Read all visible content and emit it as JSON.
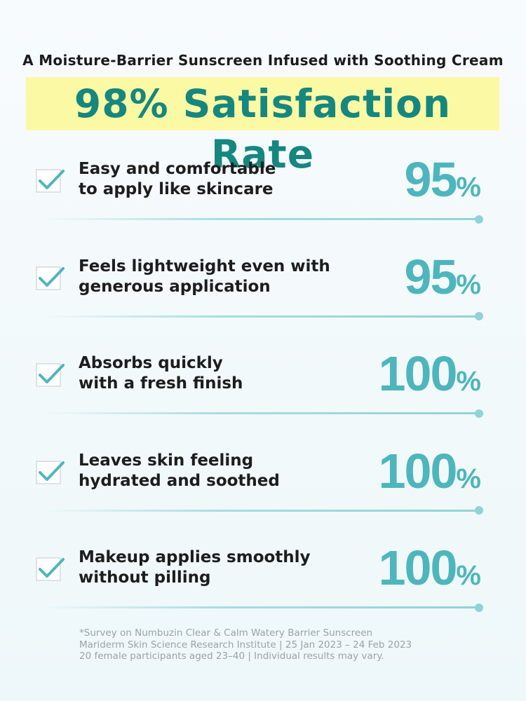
{
  "header": {
    "subtitle": "A Moisture-Barrier Sunscreen Infused with Soothing Cream",
    "title": "98% Satisfaction Rate"
  },
  "items": [
    {
      "lines": [
        "Easy and comfortable",
        "to apply like skincare"
      ],
      "number": "95",
      "unit": "%"
    },
    {
      "lines": [
        "Feels lightweight even with",
        "generous application"
      ],
      "number": "95",
      "unit": "%"
    },
    {
      "lines": [
        "Absorbs quickly",
        "with a fresh finish"
      ],
      "number": "100",
      "unit": "%"
    },
    {
      "lines": [
        "Leaves skin feeling",
        "hydrated and soothed"
      ],
      "number": "100",
      "unit": "%"
    },
    {
      "lines": [
        "Makeup applies smoothly",
        "without pilling"
      ],
      "number": "100",
      "unit": "%"
    }
  ],
  "footnote": [
    "*Survey on Numbuzin Clear & Calm Watery Barrier Sunscreen",
    "Mariderm Skin Science Research Institute | 25 Jan 2023 – 24 Feb 2023",
    "20 female participants aged 23–40 | Individual results may vary."
  ]
}
